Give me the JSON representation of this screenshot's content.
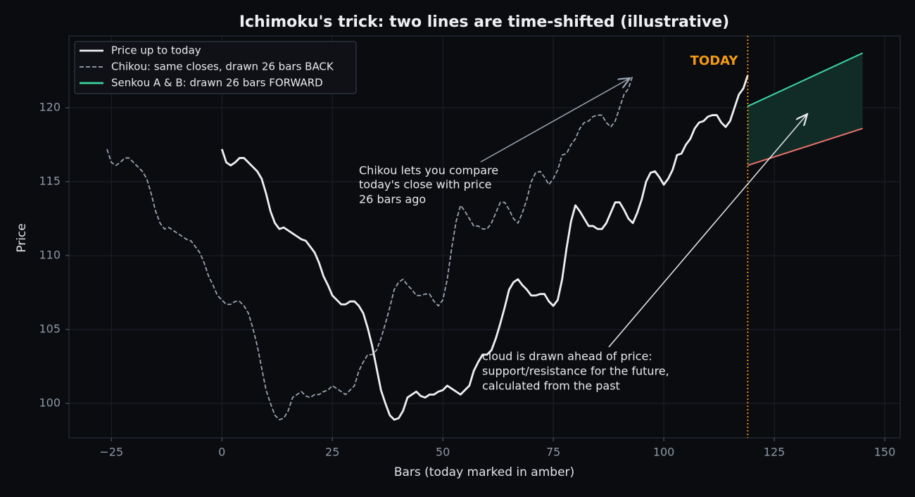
{
  "chart_data": {
    "type": "line",
    "title": "Ichimoku's trick: two lines are time-shifted (illustrative)",
    "xlabel": "Bars (today marked in amber)",
    "ylabel": "Price",
    "xlim": [
      -34.6,
      153.5
    ],
    "ylim": [
      97.67,
      124.86
    ],
    "xticks": [
      {
        "value": -25,
        "label": "−25"
      },
      0,
      25,
      50,
      75,
      100,
      125,
      150
    ],
    "yticks": [
      100,
      105,
      110,
      115,
      120
    ],
    "grid": true,
    "legend": "upper left",
    "series": [
      {
        "name": "Price up to today",
        "color": "#f0f0f2",
        "style": "solid",
        "x": [
          0,
          1,
          2,
          3,
          4,
          5,
          6,
          7,
          8,
          9,
          10,
          11,
          12,
          13,
          14,
          15,
          16,
          17,
          18,
          19,
          20,
          21,
          22,
          23,
          24,
          25,
          26,
          27,
          28,
          29,
          30,
          31,
          32,
          33,
          34,
          35,
          36,
          37,
          38,
          39,
          40,
          41,
          42,
          43,
          44,
          45,
          46,
          47,
          48,
          49,
          50,
          51,
          52,
          53,
          54,
          55,
          56,
          57,
          58,
          59,
          60,
          61,
          62,
          63,
          64,
          65,
          66,
          67,
          68,
          69,
          70,
          71,
          72,
          73,
          74,
          75,
          76,
          77,
          78,
          79,
          80,
          81,
          82,
          83,
          84,
          85,
          86,
          87,
          88,
          89,
          90,
          91,
          92,
          93,
          94,
          95,
          96,
          97,
          98,
          99,
          100,
          101,
          102,
          103,
          104,
          105,
          106,
          107,
          108,
          109,
          110,
          111,
          112,
          113,
          114,
          115,
          116,
          117,
          118,
          119
        ],
        "values": [
          117.2,
          116.3,
          116.1,
          116.3,
          116.6,
          116.6,
          116.3,
          116.0,
          115.7,
          115.2,
          114.2,
          113.0,
          112.2,
          111.8,
          111.9,
          111.7,
          111.5,
          111.3,
          111.1,
          111.0,
          110.6,
          110.2,
          109.5,
          108.6,
          108.0,
          107.3,
          107.0,
          106.7,
          106.7,
          106.9,
          106.9,
          106.6,
          106.1,
          105.1,
          103.9,
          102.4,
          100.9,
          100.0,
          99.2,
          98.9,
          99.0,
          99.5,
          100.4,
          100.6,
          100.8,
          100.5,
          100.4,
          100.6,
          100.6,
          100.8,
          100.9,
          101.2,
          101.0,
          100.8,
          100.6,
          100.9,
          101.2,
          102.2,
          102.8,
          103.3,
          103.3,
          103.6,
          104.4,
          105.4,
          106.5,
          107.7,
          108.2,
          108.4,
          108.0,
          107.7,
          107.3,
          107.3,
          107.4,
          107.4,
          106.9,
          106.6,
          107.0,
          108.4,
          110.5,
          112.3,
          113.4,
          113.0,
          112.5,
          112.0,
          112.0,
          111.8,
          111.8,
          112.2,
          112.9,
          113.6,
          113.6,
          113.1,
          112.5,
          112.2,
          112.9,
          113.8,
          115.0,
          115.6,
          115.7,
          115.3,
          114.8,
          115.2,
          115.8,
          116.8,
          116.9,
          117.5,
          117.9,
          118.6,
          119.0,
          119.1,
          119.4,
          119.5,
          119.5,
          119.0,
          118.7,
          119.1,
          120.0,
          120.9,
          121.3,
          122.2
        ]
      },
      {
        "name": "Chikou: same closes, drawn 26 bars BACK",
        "color": "#9aa5b1",
        "style": "dashed",
        "x": [
          -26,
          -25,
          -24,
          -23,
          -22,
          -21,
          -20,
          -19,
          -18,
          -17,
          -16,
          -15,
          -14,
          -13,
          -12,
          -11,
          -10,
          -9,
          -8,
          -7,
          -6,
          -5,
          -4,
          -3,
          -2,
          -1,
          0,
          1,
          2,
          3,
          4,
          5,
          6,
          7,
          8,
          9,
          10,
          11,
          12,
          13,
          14,
          15,
          16,
          17,
          18,
          19,
          20,
          21,
          22,
          23,
          24,
          25,
          26,
          27,
          28,
          29,
          30,
          31,
          32,
          33,
          34,
          35,
          36,
          37,
          38,
          39,
          40,
          41,
          42,
          43,
          44,
          45,
          46,
          47,
          48,
          49,
          50,
          51,
          52,
          53,
          54,
          55,
          56,
          57,
          58,
          59,
          60,
          61,
          62,
          63,
          64,
          65,
          66,
          67,
          68,
          69,
          70,
          71,
          72,
          73,
          74,
          75,
          76,
          77,
          78,
          79,
          80,
          81,
          82,
          83,
          84,
          85,
          86,
          87,
          88,
          89,
          90,
          91,
          92,
          93
        ],
        "values": [
          117.2,
          116.3,
          116.1,
          116.3,
          116.6,
          116.6,
          116.3,
          116.0,
          115.7,
          115.2,
          114.2,
          113.0,
          112.2,
          111.8,
          111.9,
          111.7,
          111.5,
          111.3,
          111.1,
          111.0,
          110.6,
          110.2,
          109.5,
          108.6,
          108.0,
          107.3,
          107.0,
          106.7,
          106.7,
          106.9,
          106.9,
          106.6,
          106.1,
          105.1,
          103.9,
          102.4,
          100.9,
          100.0,
          99.2,
          98.9,
          99.0,
          99.5,
          100.4,
          100.6,
          100.8,
          100.5,
          100.4,
          100.6,
          100.6,
          100.8,
          100.9,
          101.2,
          101.0,
          100.8,
          100.6,
          100.9,
          101.2,
          102.2,
          102.8,
          103.3,
          103.3,
          103.6,
          104.4,
          105.4,
          106.5,
          107.7,
          108.2,
          108.4,
          108.0,
          107.7,
          107.3,
          107.3,
          107.4,
          107.4,
          106.9,
          106.6,
          107.0,
          108.4,
          110.5,
          112.3,
          113.4,
          113.0,
          112.5,
          112.0,
          112.0,
          111.8,
          111.8,
          112.2,
          112.9,
          113.6,
          113.6,
          113.1,
          112.5,
          112.2,
          112.9,
          113.8,
          115.0,
          115.6,
          115.7,
          115.3,
          114.8,
          115.2,
          115.8,
          116.8,
          116.9,
          117.5,
          117.9,
          118.6,
          119.0,
          119.1,
          119.4,
          119.5,
          119.5,
          119.0,
          118.7,
          119.1,
          120.0,
          120.9,
          121.3,
          122.2
        ]
      }
    ],
    "cloud": {
      "name": "Senkou A & B: drawn 26 bars FORWARD",
      "x": [
        119,
        145
      ],
      "upper": [
        120.1,
        123.7
      ],
      "lower": [
        116.1,
        118.6
      ],
      "upper_color": "#3dd6a0",
      "lower_color": "#e8736b",
      "fill": "#12302a"
    },
    "today": {
      "x": 119,
      "label": "TODAY",
      "color": "#f39c12"
    },
    "annotations": [
      {
        "lines": [
          "Chikou lets you compare",
          "today's close with price",
          "26 bars ago"
        ]
      },
      {
        "lines": [
          "cloud is drawn ahead of price:",
          "support/resistance for the future,",
          "calculated from the past"
        ]
      }
    ]
  }
}
